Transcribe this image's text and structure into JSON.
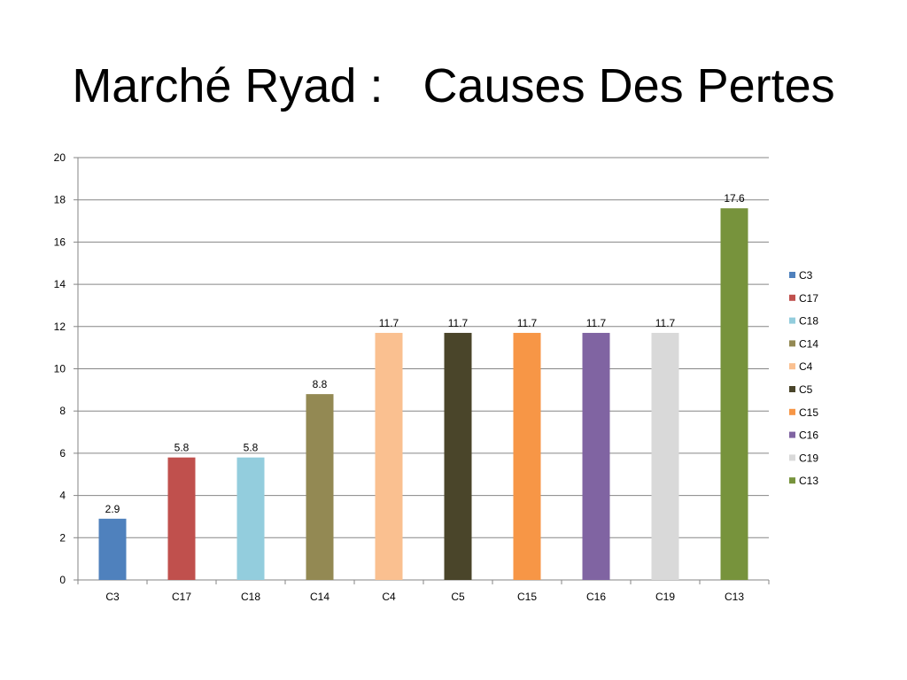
{
  "title": "Marché Ryad :   Causes Des Pertes",
  "chart_data": {
    "type": "bar",
    "categories": [
      "C3",
      "C17",
      "C18",
      "C14",
      "C4",
      "C5",
      "C15",
      "C16",
      "C19",
      "C13"
    ],
    "values": [
      2.9,
      5.8,
      5.8,
      8.8,
      11.7,
      11.7,
      11.7,
      11.7,
      11.7,
      17.6
    ],
    "colors": [
      "#4f81bd",
      "#c0504d",
      "#93cddd",
      "#938953",
      "#fac090",
      "#4a452a",
      "#f79646",
      "#8064a2",
      "#d9d9d9",
      "#77933c"
    ],
    "ylim": [
      0,
      20
    ],
    "yticks": [
      0,
      2,
      4,
      6,
      8,
      10,
      12,
      14,
      16,
      18,
      20
    ],
    "grid": true,
    "data_labels": true,
    "legend": "right"
  }
}
